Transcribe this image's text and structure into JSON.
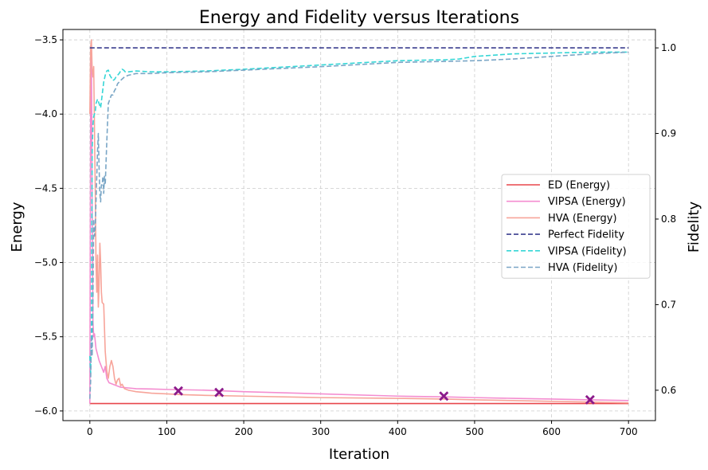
{
  "chart_data": {
    "type": "line",
    "title": "Energy and Fidelity versus Iterations",
    "xlabel": "Iteration",
    "ylabel": "Energy",
    "y2label": "Fidelity",
    "xlim": [
      -35,
      735
    ],
    "ylim": [
      -6.065,
      -3.43
    ],
    "y2lim": [
      0.5645,
      1.0215
    ],
    "xticks": [
      0,
      100,
      200,
      300,
      400,
      500,
      600,
      700
    ],
    "yticks": [
      -6.0,
      -5.5,
      -5.0,
      -4.5,
      -4.0,
      -3.5
    ],
    "ytick_labels": [
      "−6.0",
      "−5.5",
      "−5.0",
      "−4.5",
      "−4.0",
      "−3.5"
    ],
    "y2ticks": [
      0.6,
      0.7,
      0.8,
      0.9,
      1.0
    ],
    "y2tick_labels": [
      "0.6",
      "0.7",
      "0.8",
      "0.9",
      "1.0"
    ],
    "grid": true,
    "legend_position": "center-right",
    "series": [
      {
        "name": "ED (Energy)",
        "axis": "left",
        "style": "solid",
        "color": "#e8474b",
        "x": [
          0,
          700
        ],
        "y": [
          -5.95,
          -5.95
        ]
      },
      {
        "name": "VIPSA (Energy)",
        "axis": "left",
        "style": "solid",
        "color": "#f48dd0",
        "x": [
          0,
          1,
          2,
          3,
          4,
          5,
          6,
          8,
          10,
          12,
          15,
          18,
          20,
          22,
          25,
          30,
          35,
          40,
          50,
          60,
          80,
          100,
          150,
          200,
          300,
          400,
          460,
          500,
          550,
          600,
          650,
          700
        ],
        "y": [
          -5.95,
          -4.0,
          -3.55,
          -4.6,
          -5.4,
          -5.5,
          -5.48,
          -5.58,
          -5.62,
          -5.66,
          -5.7,
          -5.74,
          -5.7,
          -5.78,
          -5.81,
          -5.82,
          -5.83,
          -5.84,
          -5.845,
          -5.85,
          -5.852,
          -5.855,
          -5.86,
          -5.87,
          -5.885,
          -5.9,
          -5.905,
          -5.91,
          -5.915,
          -5.92,
          -5.925,
          -5.93
        ]
      },
      {
        "name": "HVA (Energy)",
        "axis": "left",
        "style": "solid",
        "color": "#f7a49a",
        "x": [
          0,
          1,
          2,
          3,
          4,
          5,
          6,
          7,
          8,
          9,
          10,
          11,
          12,
          13,
          14,
          15,
          16,
          18,
          20,
          22,
          24,
          26,
          28,
          30,
          32,
          34,
          36,
          38,
          40,
          42,
          45,
          50,
          55,
          60,
          70,
          80,
          100,
          120,
          150,
          200,
          300,
          400,
          460,
          500,
          550,
          600,
          650,
          700
        ],
        "y": [
          -4.0,
          -3.55,
          -3.5,
          -3.7,
          -3.75,
          -3.68,
          -4.1,
          -4.5,
          -5.0,
          -5.2,
          -4.95,
          -5.3,
          -5.15,
          -4.87,
          -5.0,
          -5.2,
          -5.27,
          -5.28,
          -5.6,
          -5.73,
          -5.78,
          -5.7,
          -5.66,
          -5.7,
          -5.78,
          -5.82,
          -5.79,
          -5.78,
          -5.83,
          -5.82,
          -5.85,
          -5.86,
          -5.865,
          -5.87,
          -5.875,
          -5.88,
          -5.885,
          -5.89,
          -5.895,
          -5.9,
          -5.91,
          -5.915,
          -5.92,
          -5.925,
          -5.93,
          -5.935,
          -5.94,
          -5.945
        ]
      },
      {
        "name": "Perfect Fidelity",
        "axis": "right",
        "style": "dashed",
        "color": "#3b3f8f",
        "x": [
          0,
          700
        ],
        "y": [
          1.0,
          1.0
        ]
      },
      {
        "name": "VIPSA (Fidelity)",
        "axis": "right",
        "style": "dashed",
        "color": "#36d6d6",
        "x": [
          0,
          1,
          2,
          3,
          4,
          5,
          7,
          8,
          10,
          12,
          14,
          16,
          18,
          20,
          22,
          24,
          26,
          28,
          30,
          32,
          34,
          36,
          38,
          40,
          42,
          44,
          46,
          50,
          60,
          80,
          100,
          150,
          200,
          300,
          400,
          450,
          460,
          480,
          500,
          550,
          600,
          650,
          700
        ],
        "y": [
          0.64,
          0.62,
          0.66,
          0.88,
          0.91,
          0.92,
          0.925,
          0.935,
          0.94,
          0.935,
          0.93,
          0.945,
          0.96,
          0.968,
          0.973,
          0.974,
          0.968,
          0.965,
          0.962,
          0.963,
          0.966,
          0.968,
          0.97,
          0.973,
          0.975,
          0.974,
          0.972,
          0.972,
          0.973,
          0.972,
          0.972,
          0.973,
          0.975,
          0.98,
          0.985,
          0.986,
          0.986,
          0.987,
          0.99,
          0.993,
          0.994,
          0.995,
          0.995
        ]
      },
      {
        "name": "HVA (Fidelity)",
        "axis": "right",
        "style": "dashed",
        "color": "#7aa6c6",
        "x": [
          0,
          1,
          2,
          3,
          4,
          5,
          6,
          7,
          8,
          9,
          10,
          11,
          12,
          13,
          14,
          15,
          16,
          17,
          18,
          19,
          20,
          22,
          24,
          26,
          28,
          30,
          32,
          34,
          36,
          38,
          40,
          45,
          50,
          60,
          80,
          100,
          150,
          200,
          300,
          400,
          500,
          550,
          600,
          650,
          700
        ],
        "y": [
          0.59,
          0.61,
          0.66,
          0.64,
          0.7,
          0.8,
          0.78,
          0.79,
          0.82,
          0.85,
          0.88,
          0.9,
          0.86,
          0.83,
          0.82,
          0.84,
          0.84,
          0.85,
          0.83,
          0.85,
          0.84,
          0.89,
          0.935,
          0.94,
          0.945,
          0.945,
          0.95,
          0.953,
          0.958,
          0.96,
          0.962,
          0.966,
          0.968,
          0.97,
          0.97,
          0.971,
          0.972,
          0.974,
          0.978,
          0.983,
          0.985,
          0.987,
          0.99,
          0.993,
          0.995
        ]
      }
    ],
    "markers": {
      "style": "X",
      "color": "#8b1a8b",
      "axis": "left",
      "points": [
        {
          "x": 115,
          "y": -5.865
        },
        {
          "x": 168,
          "y": -5.875
        },
        {
          "x": 460,
          "y": -5.9
        },
        {
          "x": 650,
          "y": -5.925
        }
      ]
    }
  }
}
